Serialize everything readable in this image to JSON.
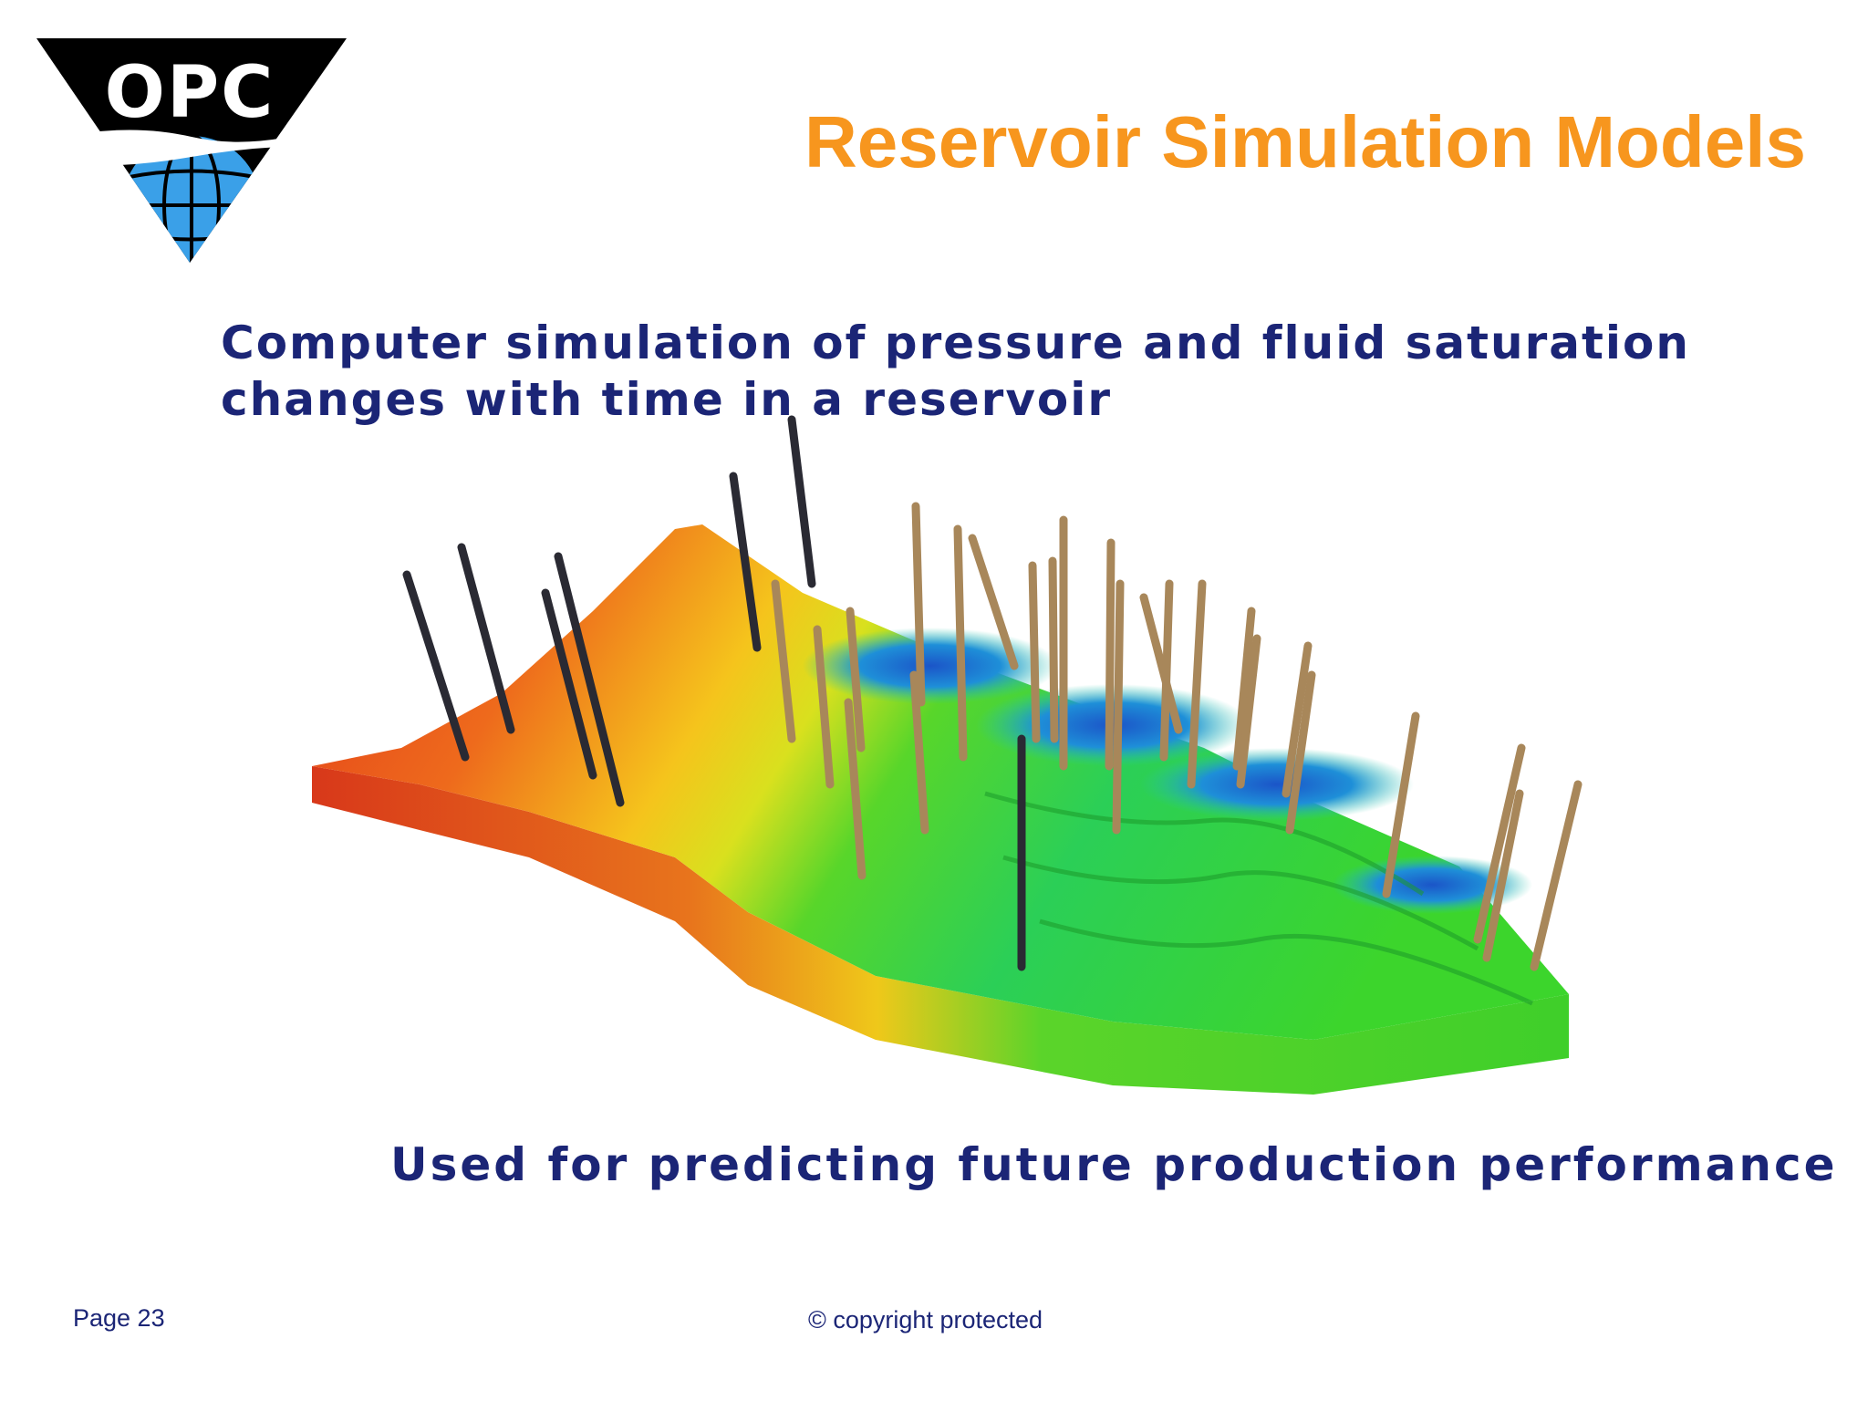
{
  "logo": {
    "text": "OPC",
    "icon": "globe-icon"
  },
  "title": "Reservoir Simulation Models",
  "subtitle": {
    "line1": "Computer simulation of pressure and fluid saturation",
    "line2": "changes with time in a reservoir"
  },
  "tagline": "Used for predicting future production performance",
  "footer": {
    "page": "Page 23",
    "copyright": "© copyright protected"
  },
  "colors": {
    "title": "#f7961e",
    "body_text": "#1b2576",
    "logo_black": "#000000",
    "logo_globe": "#3aa0e8",
    "model_red": "#e8431c",
    "model_yellow": "#f5d21a",
    "model_green": "#39d02a",
    "model_blue": "#1e8fd8",
    "well_dark": "#2a2a33",
    "well_tan": "#a8875a"
  }
}
